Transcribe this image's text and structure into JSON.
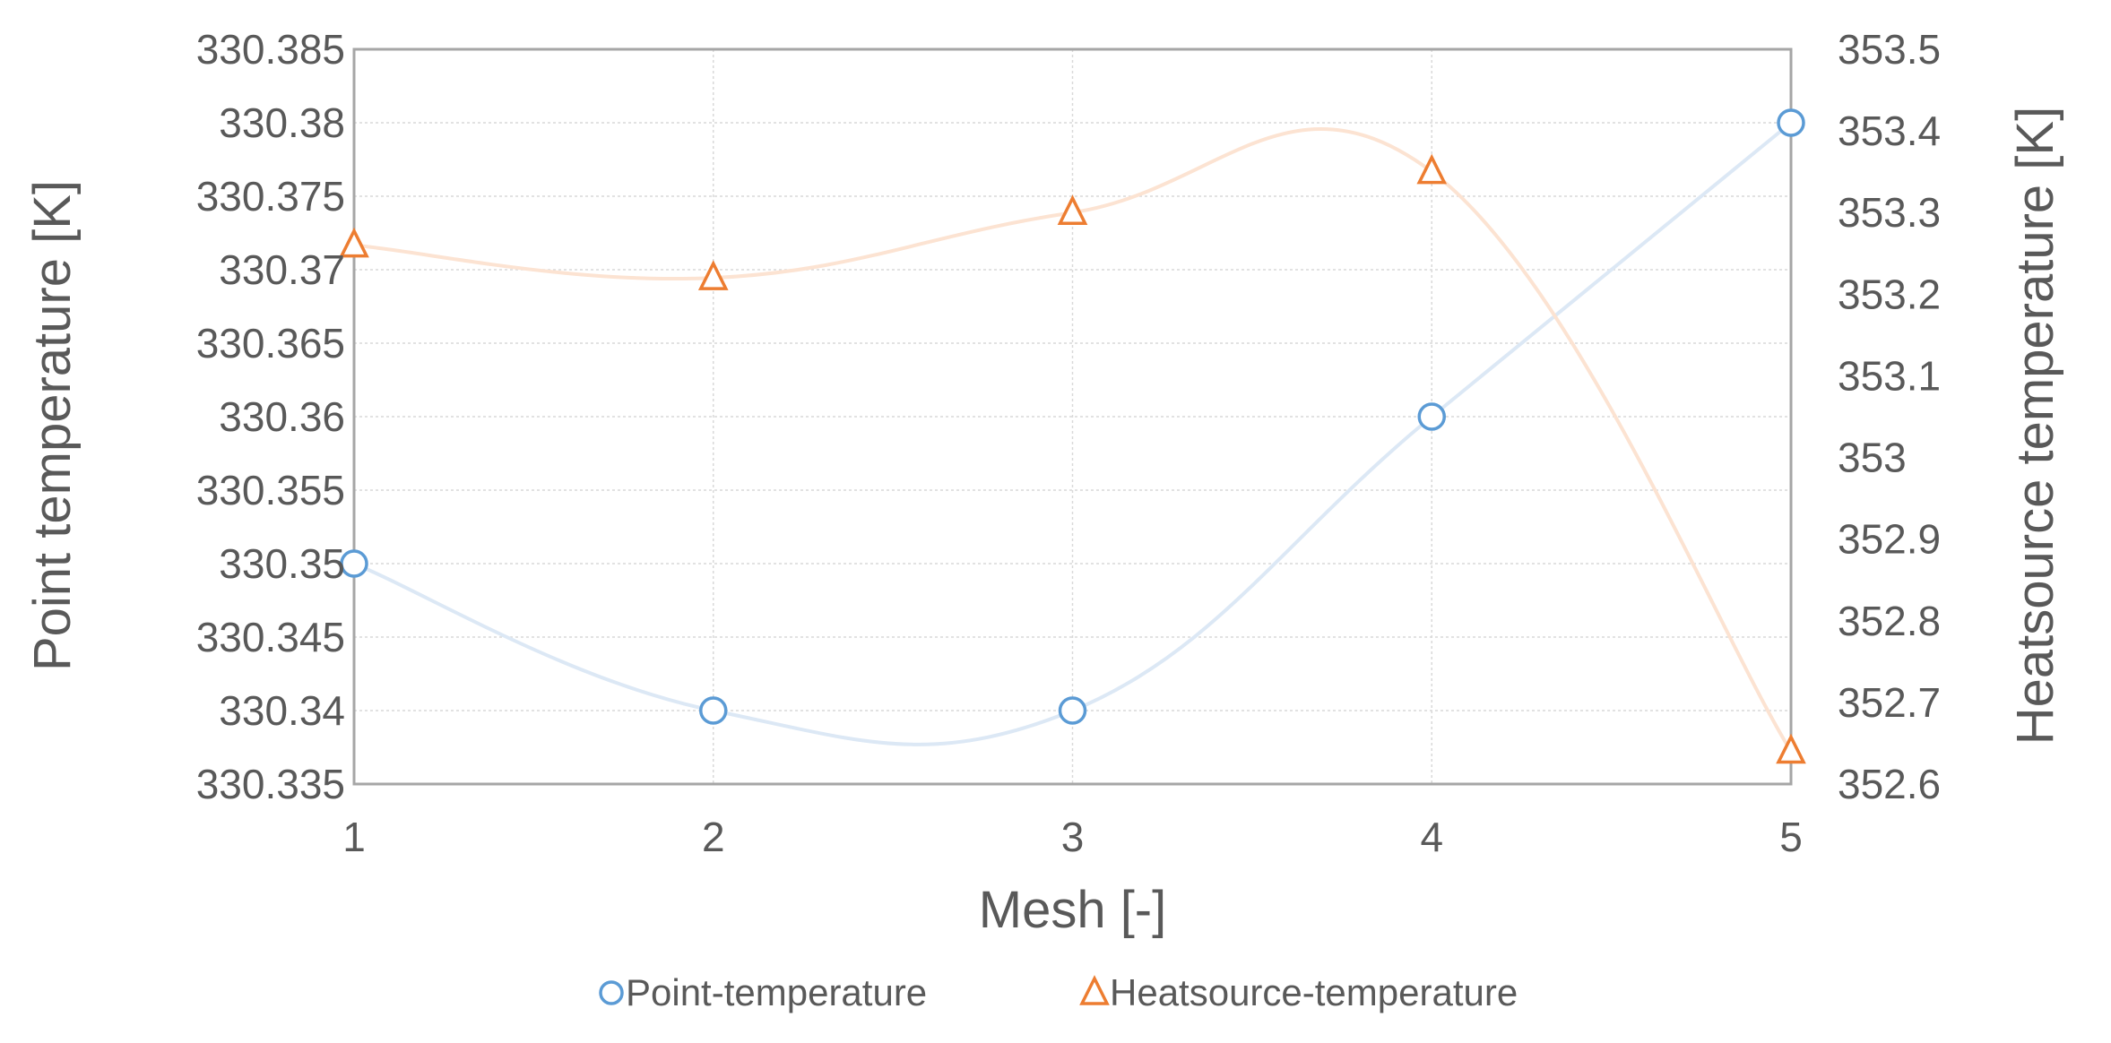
{
  "chart_data": {
    "type": "line",
    "x": [
      1,
      2,
      3,
      4,
      5
    ],
    "xlabel": "Mesh [-]",
    "xlim": [
      1,
      5
    ],
    "x_ticks": [
      "1",
      "2",
      "3",
      "4",
      "5"
    ],
    "y_left": {
      "label": "Point temperature [K]",
      "lim": [
        330.335,
        330.385
      ],
      "ticks": [
        "330.335",
        "330.34",
        "330.345",
        "330.35",
        "330.355",
        "330.36",
        "330.365",
        "330.37",
        "330.375",
        "330.38",
        "330.385"
      ]
    },
    "y_right": {
      "label": "Heatsource temperature [K]",
      "lim": [
        352.6,
        353.5
      ],
      "ticks": [
        "352.6",
        "352.7",
        "352.8",
        "352.9",
        "353",
        "353.1",
        "353.2",
        "353.3",
        "353.4",
        "353.5"
      ]
    },
    "series": [
      {
        "name": "Point-temperature",
        "axis": "left",
        "marker": "circle",
        "color": "#5B9BD5",
        "line_color": "#DCE8F5",
        "values": [
          330.35,
          330.34,
          330.34,
          330.36,
          330.38
        ]
      },
      {
        "name": "Heatsource-temperature",
        "axis": "right",
        "marker": "triangle",
        "color": "#ED7D31",
        "line_color": "#FCE3D2",
        "values": [
          353.26,
          353.22,
          353.3,
          353.35,
          352.64
        ]
      }
    ],
    "grid": true,
    "smooth": true,
    "legend_position": "bottom"
  }
}
